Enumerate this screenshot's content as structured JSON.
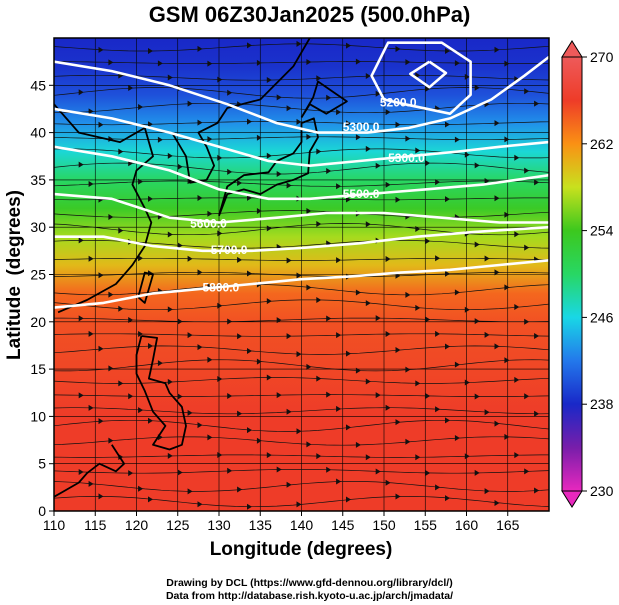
{
  "chart_data": {
    "type": "heatmap",
    "title": "GSM 06Z30Jan2025 (500.0hPa)",
    "xlabel": "Longitude (degrees)",
    "ylabel": "Latitude  (degrees)",
    "xlim": [
      110,
      170
    ],
    "ylim": [
      0,
      50
    ],
    "x_ticks": [
      110,
      115,
      120,
      125,
      130,
      135,
      140,
      145,
      150,
      155,
      160,
      165
    ],
    "y_ticks": [
      0,
      5,
      10,
      15,
      20,
      25,
      30,
      35,
      40,
      45
    ],
    "grid": true,
    "color_variable": "temperature (K)",
    "colorbar": {
      "placement": "right",
      "min": 230,
      "max": 270,
      "ticks": [
        230,
        238,
        246,
        254,
        262,
        270
      ],
      "extend": "both"
    },
    "temperature_profile": {
      "latitude": [
        0,
        5,
        10,
        15,
        20,
        23,
        26,
        29,
        32,
        35,
        38,
        41,
        44,
        47,
        50
      ],
      "temperature": [
        266,
        266,
        266,
        265.5,
        265,
        264,
        260,
        257,
        253.5,
        250,
        246.5,
        243,
        240,
        238.5,
        238
      ]
    },
    "contour_variable": "geopotential height (m)",
    "contours": [
      {
        "label": "5200.0",
        "points": [
          [
            155.5,
            47.5
          ],
          [
            157.5,
            46.3
          ],
          [
            155.5,
            44.8
          ],
          [
            153.2,
            46.2
          ],
          [
            155.5,
            47.5
          ]
        ]
      },
      {
        "label": "5200.0",
        "points": [
          [
            152.5,
            43.0
          ],
          [
            158.0,
            42.0
          ],
          [
            160.5,
            44.0
          ],
          [
            160.5,
            47.5
          ],
          [
            157.0,
            49.5
          ],
          [
            150.5,
            49.5
          ],
          [
            148.5,
            46.0
          ],
          [
            150.0,
            43.5
          ],
          [
            152.5,
            43.0
          ]
        ]
      },
      {
        "label": "5300.0",
        "points": [
          [
            110,
            47.5
          ],
          [
            117,
            46.5
          ],
          [
            124,
            45.0
          ],
          [
            131,
            43.0
          ],
          [
            137,
            41.0
          ],
          [
            142,
            40.0
          ],
          [
            148,
            40.0
          ],
          [
            153,
            40.5
          ],
          [
            158,
            41.5
          ],
          [
            163,
            43.5
          ],
          [
            167,
            46.0
          ],
          [
            170,
            48.0
          ]
        ]
      },
      {
        "label": "5300.0",
        "points": [
          [
            110,
            42.5
          ],
          [
            117,
            41.5
          ],
          [
            124,
            40.0
          ],
          [
            130,
            38.5
          ],
          [
            136,
            37.0
          ],
          [
            141,
            36.5
          ],
          [
            147,
            37.0
          ],
          [
            153,
            37.5
          ],
          [
            159,
            38.0
          ],
          [
            164,
            38.5
          ],
          [
            170,
            39.0
          ]
        ]
      },
      {
        "label": "5500.0",
        "points": [
          [
            110,
            38.5
          ],
          [
            117,
            37.5
          ],
          [
            124,
            36.0
          ],
          [
            130,
            34.0
          ],
          [
            136,
            33.0
          ],
          [
            141,
            33.0
          ],
          [
            148,
            33.5
          ],
          [
            155,
            34.0
          ],
          [
            162,
            34.5
          ],
          [
            170,
            35.5
          ]
        ]
      },
      {
        "label": "5600.0",
        "points": [
          [
            110,
            33.5
          ],
          [
            117,
            33.0
          ],
          [
            124,
            31.0
          ],
          [
            130,
            30.5
          ],
          [
            137,
            31.0
          ],
          [
            143,
            31.5
          ],
          [
            150,
            31.5
          ],
          [
            157,
            31.0
          ],
          [
            164,
            30.5
          ],
          [
            170,
            30.5
          ]
        ]
      },
      {
        "label": "5700.0",
        "points": [
          [
            110,
            29.0
          ],
          [
            116,
            29.0
          ],
          [
            122,
            28.0
          ],
          [
            128,
            27.5
          ],
          [
            134,
            27.5
          ],
          [
            140,
            27.8
          ],
          [
            147,
            28.3
          ],
          [
            154,
            29.0
          ],
          [
            161,
            29.5
          ],
          [
            170,
            30.0
          ]
        ]
      },
      {
        "label": "5800.0",
        "points": [
          [
            110,
            21.5
          ],
          [
            116,
            22.0
          ],
          [
            122,
            23.0
          ],
          [
            128,
            23.5
          ],
          [
            134,
            24.0
          ],
          [
            140,
            24.5
          ],
          [
            146,
            24.8
          ],
          [
            152,
            25.2
          ],
          [
            158,
            25.5
          ],
          [
            164,
            26.0
          ],
          [
            170,
            26.5
          ]
        ]
      }
    ],
    "annotations": [
      "5200.0",
      "5300.0",
      "5300.0",
      "5500.0",
      "5600.0",
      "5700.0",
      "5800.0"
    ]
  },
  "credits": {
    "line1": "Drawing by DCL (https://www.gfd-dennou.org/library/dcl/)",
    "line2": "Data from http://database.rish.kyoto-u.ac.jp/arch/jmadata/"
  }
}
